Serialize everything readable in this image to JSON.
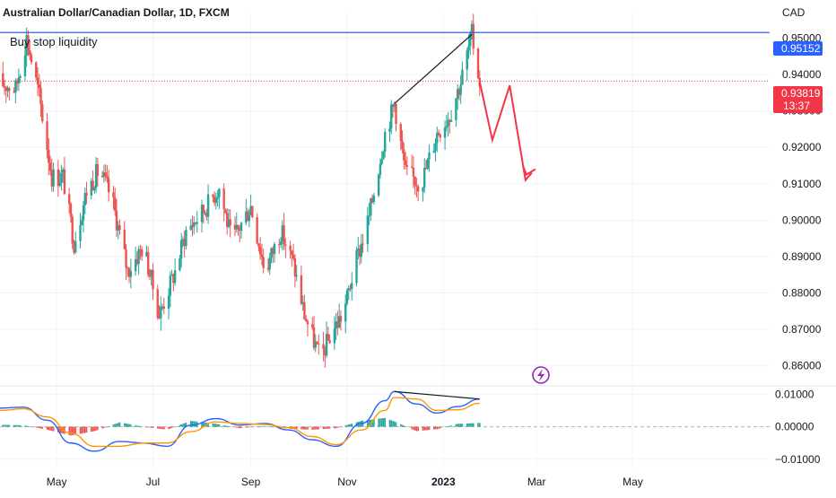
{
  "header": {
    "symbol_title": "Australian Dollar/Canadian Dollar, 1D, FXCM",
    "currency": "CAD"
  },
  "colors": {
    "up": "#26a69a",
    "down": "#ef5350",
    "level_line": "#2962ff",
    "current_line": "#f23645",
    "arrow": "#f23645",
    "macd_line": "#2962ff",
    "signal_line": "#ff9800",
    "grid": "#f0f3fa"
  },
  "annotations": {
    "buy_stop_label": "Buy stop liquidity",
    "level_tag": "0.95152",
    "current_price_tag": "0.93819",
    "countdown_tag": "13:37",
    "lightning_icon": "lightning-icon"
  },
  "chart_data": [
    {
      "type": "candlestick",
      "title": "Australian Dollar/Canadian Dollar, 1D, FXCM",
      "y_axis": {
        "unit": "CAD",
        "range": [
          0.855,
          0.957
        ],
        "tick_labels": [
          "0.95000",
          "0.94000",
          "0.93000",
          "0.92000",
          "0.91000",
          "0.90000",
          "0.89000",
          "0.88000",
          "0.87000",
          "0.86000"
        ],
        "tick_values": [
          0.95,
          0.94,
          0.93,
          0.92,
          0.91,
          0.9,
          0.89,
          0.88,
          0.87,
          0.86
        ]
      },
      "x_axis": {
        "tick_labels": [
          "May",
          "Jul",
          "Sep",
          "Nov",
          "2023",
          "Mar",
          "May"
        ]
      },
      "grid": true,
      "levels": [
        {
          "label": "0.95152",
          "value": 0.95152
        },
        {
          "label": "0.93819",
          "value": 0.93819
        }
      ],
      "close_path": [
        [
          "2022-03-25",
          0.938
        ],
        [
          "2022-04-05",
          0.936
        ],
        [
          "2022-04-12",
          0.95
        ],
        [
          "2022-04-20",
          0.934
        ],
        [
          "2022-04-28",
          0.912
        ],
        [
          "2022-05-05",
          0.912
        ],
        [
          "2022-05-12",
          0.894
        ],
        [
          "2022-05-20",
          0.908
        ],
        [
          "2022-05-28",
          0.914
        ],
        [
          "2022-06-05",
          0.906
        ],
        [
          "2022-06-15",
          0.886
        ],
        [
          "2022-06-25",
          0.893
        ],
        [
          "2022-07-05",
          0.874
        ],
        [
          "2022-07-15",
          0.886
        ],
        [
          "2022-07-22",
          0.897
        ],
        [
          "2022-08-01",
          0.902
        ],
        [
          "2022-08-12",
          0.909
        ],
        [
          "2022-08-20",
          0.894
        ],
        [
          "2022-09-01",
          0.904
        ],
        [
          "2022-09-10",
          0.886
        ],
        [
          "2022-09-20",
          0.897
        ],
        [
          "2022-09-28",
          0.888
        ],
        [
          "2022-10-05",
          0.874
        ],
        [
          "2022-10-15",
          0.862
        ],
        [
          "2022-10-22",
          0.869
        ],
        [
          "2022-10-30",
          0.875
        ],
        [
          "2022-11-05",
          0.886
        ],
        [
          "2022-11-15",
          0.901
        ],
        [
          "2022-11-25",
          0.924
        ],
        [
          "2022-12-01",
          0.932
        ],
        [
          "2022-12-08",
          0.913
        ],
        [
          "2022-12-18",
          0.91
        ],
        [
          "2022-12-28",
          0.924
        ],
        [
          "2023-01-05",
          0.929
        ],
        [
          "2023-01-12",
          0.938
        ],
        [
          "2023-01-19",
          0.951
        ],
        [
          "2023-01-24",
          0.938
        ]
      ],
      "projection": [
        [
          "2023-01-24",
          0.938
        ],
        [
          "2023-02-01",
          0.922
        ],
        [
          "2023-02-12",
          0.937
        ],
        [
          "2023-02-22",
          0.911
        ],
        [
          "2023-02-26",
          0.913
        ]
      ],
      "trend_lines": [
        {
          "from": [
            "2022-12-01",
            0.932
          ],
          "to": [
            "2023-01-19",
            0.951
          ]
        }
      ]
    },
    {
      "type": "line",
      "y_axis": {
        "range": [
          -0.0125,
          0.012
        ],
        "tick_labels": [
          "0.01000",
          "0.00000",
          "−0.01000"
        ],
        "tick_values": [
          0.01,
          0.0,
          -0.01
        ]
      },
      "series": [
        {
          "values": [
            [
              "2022-03-25",
              0.0057
            ],
            [
              "2022-04-10",
              0.006
            ],
            [
              "2022-04-25",
              0.002
            ],
            [
              "2022-05-10",
              -0.005
            ],
            [
              "2022-05-25",
              -0.0075
            ],
            [
              "2022-06-10",
              -0.0045
            ],
            [
              "2022-06-25",
              -0.005
            ],
            [
              "2022-07-10",
              -0.006
            ],
            [
              "2022-07-25",
              0.0005
            ],
            [
              "2022-08-10",
              0.0025
            ],
            [
              "2022-08-25",
              0.0005
            ],
            [
              "2022-09-10",
              0.001
            ],
            [
              "2022-09-25",
              -0.001
            ],
            [
              "2022-10-10",
              -0.004
            ],
            [
              "2022-10-25",
              -0.006
            ],
            [
              "2022-11-10",
              0.001
            ],
            [
              "2022-11-25",
              0.008
            ],
            [
              "2022-12-01",
              0.0108
            ],
            [
              "2022-12-15",
              0.007
            ],
            [
              "2022-12-28",
              0.0042
            ],
            [
              "2023-01-10",
              0.0062
            ],
            [
              "2023-01-24",
              0.0085
            ]
          ]
        },
        {
          "values": [
            [
              "2022-03-25",
              0.005
            ],
            [
              "2022-04-10",
              0.0055
            ],
            [
              "2022-04-25",
              0.003
            ],
            [
              "2022-05-10",
              -0.002
            ],
            [
              "2022-05-25",
              -0.006
            ],
            [
              "2022-06-10",
              -0.006
            ],
            [
              "2022-06-25",
              -0.005
            ],
            [
              "2022-07-10",
              -0.005
            ],
            [
              "2022-07-25",
              -0.0015
            ],
            [
              "2022-08-10",
              0.0015
            ],
            [
              "2022-08-25",
              0.001
            ],
            [
              "2022-09-10",
              0.0007
            ],
            [
              "2022-09-25",
              -0.0003
            ],
            [
              "2022-10-10",
              -0.003
            ],
            [
              "2022-10-25",
              -0.0055
            ],
            [
              "2022-11-10",
              -0.001
            ],
            [
              "2022-11-25",
              0.005
            ],
            [
              "2022-12-01",
              0.009
            ],
            [
              "2022-12-15",
              0.0085
            ],
            [
              "2022-12-28",
              0.005
            ],
            [
              "2023-01-10",
              0.0052
            ],
            [
              "2023-01-24",
              0.0072
            ]
          ]
        }
      ],
      "trend_lines": [
        {
          "from": [
            "2022-12-01",
            0.0108
          ],
          "to": [
            "2023-01-24",
            0.0085
          ]
        }
      ]
    }
  ]
}
